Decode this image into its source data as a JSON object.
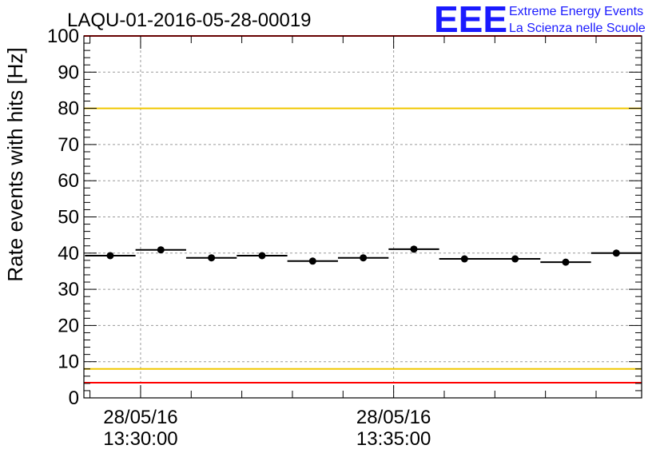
{
  "chart_data": {
    "type": "scatter",
    "title": "LAQU-01-2016-05-28-00019",
    "ylabel": "Rate events with hits [Hz]",
    "xlabel": "",
    "ylim": [
      0,
      100
    ],
    "yticks": [
      "0",
      "10",
      "20",
      "30",
      "40",
      "50",
      "60",
      "70",
      "80",
      "90",
      "100"
    ],
    "x_unit": "minutes",
    "xlim": [
      28.88,
      39.9
    ],
    "xticks": [
      {
        "x": 30.0,
        "date": "28/05/16",
        "time": "13:30:00"
      },
      {
        "x": 35.0,
        "date": "28/05/16",
        "time": "13:35:00"
      }
    ],
    "grid": true,
    "series": [
      {
        "x_start": [
          28.9,
          29.9,
          30.9,
          31.9,
          32.9,
          33.9,
          34.9,
          35.9,
          36.9,
          37.9,
          38.9
        ],
        "x_end": [
          29.9,
          30.9,
          31.9,
          32.9,
          33.9,
          34.9,
          35.9,
          36.9,
          37.9,
          38.9,
          39.9
        ],
        "values": [
          39.3,
          40.9,
          38.7,
          39.3,
          37.8,
          38.7,
          41.1,
          38.4,
          38.4,
          37.5,
          40.0
        ]
      }
    ],
    "reference_lines": [
      {
        "y": 80,
        "color": "#f0c800"
      },
      {
        "y": 8,
        "color": "#f0c800"
      },
      {
        "y": 100,
        "color": "#ff0000"
      },
      {
        "y": 4.2,
        "color": "#ff0000"
      }
    ]
  },
  "logo": {
    "mark": "EEE",
    "line1": "Extreme Energy Events",
    "line2": "La Scienza nelle Scuole",
    "color": "#1a1aff"
  }
}
